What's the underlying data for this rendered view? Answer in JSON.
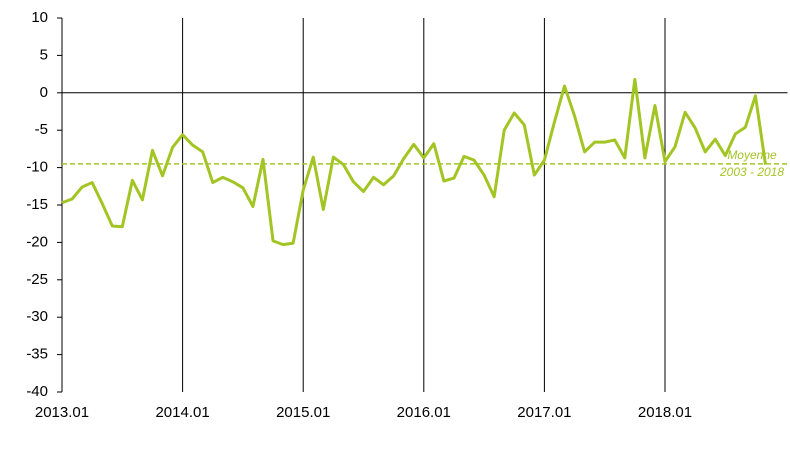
{
  "chart_data": {
    "type": "line",
    "categories": [
      "2013.01",
      null,
      null,
      null,
      null,
      null,
      null,
      null,
      null,
      null,
      null,
      null,
      "2014.01",
      null,
      null,
      null,
      null,
      null,
      null,
      null,
      null,
      null,
      null,
      null,
      "2015.01",
      null,
      null,
      null,
      null,
      null,
      null,
      null,
      null,
      null,
      null,
      null,
      "2016.01",
      null,
      null,
      null,
      null,
      null,
      null,
      null,
      null,
      null,
      null,
      null,
      "2017.01",
      null,
      null,
      null,
      null,
      null,
      null,
      null,
      null,
      null,
      null,
      null,
      "2018.01",
      null,
      null,
      null,
      null,
      null,
      null,
      null,
      null,
      null,
      null
    ],
    "values": [
      -14.7,
      -14.2,
      -12.6,
      -12.0,
      -14.8,
      -17.8,
      -17.9,
      -11.7,
      -14.3,
      -7.7,
      -11.1,
      -7.3,
      -5.6,
      -7.0,
      -7.9,
      -12.0,
      -11.3,
      -11.9,
      -12.7,
      -15.2,
      -8.9,
      -19.8,
      -20.3,
      -20.1,
      -13.0,
      -8.6,
      -15.6,
      -8.6,
      -9.6,
      -11.9,
      -13.2,
      -11.3,
      -12.3,
      -11.1,
      -8.8,
      -6.9,
      -8.7,
      -6.8,
      -11.8,
      -11.4,
      -8.5,
      -9.0,
      -11.0,
      -13.9,
      -5.0,
      -2.7,
      -4.3,
      -11.0,
      -9.0,
      -3.9,
      0.9,
      -3.1,
      -7.9,
      -6.6,
      -6.6,
      -6.3,
      -8.7,
      1.8,
      -8.7,
      -1.7,
      -9.2,
      -7.2,
      -2.6,
      -4.7,
      -7.9,
      -6.2,
      -8.4,
      -5.5,
      -4.6,
      -0.4,
      -9.6
    ],
    "color": "#a2c524",
    "ylim": [
      -40,
      10
    ],
    "yticks": [
      10,
      5,
      0,
      -5,
      -10,
      -15,
      -20,
      -25,
      -30,
      -35,
      -40
    ],
    "reference_line": {
      "value": -9.5,
      "label": [
        "Moyenne",
        "2003 - 2018"
      ],
      "color": "#a2c524"
    }
  }
}
